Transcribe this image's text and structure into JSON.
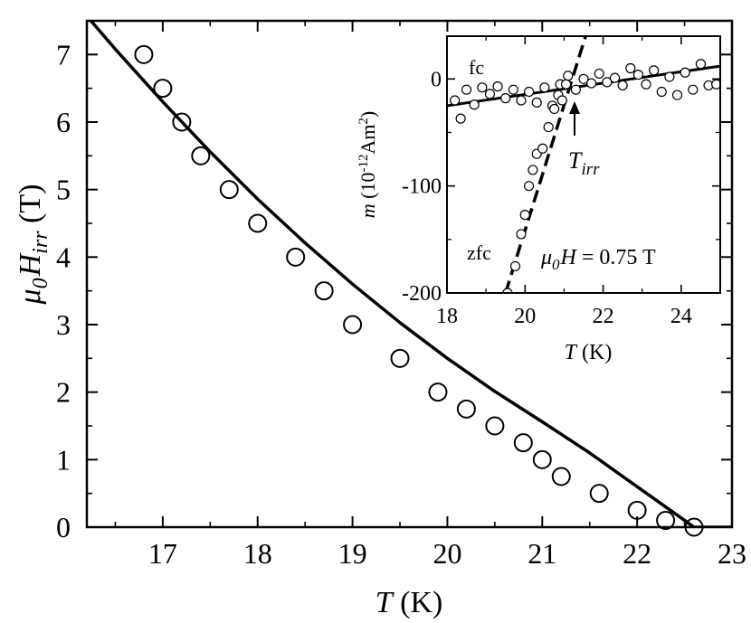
{
  "chart_data": [
    {
      "type": "scatter",
      "xlim": [
        16.2,
        23.0
      ],
      "ylim": [
        0,
        7.5
      ],
      "xticks": [
        "17",
        "18",
        "19",
        "20",
        "21",
        "22",
        "23"
      ],
      "yticks": [
        "0",
        "1",
        "2",
        "3",
        "4",
        "5",
        "6",
        "7"
      ],
      "xlabel": {
        "var": "T",
        "unit": " (K)"
      },
      "ylabel": {
        "var": "μ",
        "sub1": "0",
        "var2": "H",
        "sub2": "irr",
        "unit": " (T)"
      },
      "series": [
        {
          "style": "open-circle",
          "x": [
            16.8,
            17.0,
            17.2,
            17.4,
            17.7,
            18.0,
            18.4,
            18.7,
            19.0,
            19.5,
            19.9,
            20.2,
            20.5,
            20.8,
            21.0,
            21.2,
            21.6,
            22.0,
            22.3,
            22.6
          ],
          "y": [
            7.0,
            6.5,
            6.0,
            5.5,
            5.0,
            4.5,
            4.0,
            3.5,
            3.0,
            2.5,
            2.0,
            1.75,
            1.5,
            1.25,
            1.0,
            0.75,
            0.5,
            0.25,
            0.1,
            0.0
          ]
        },
        {
          "style": "solid-line",
          "x": [
            16.2,
            16.5,
            17.0,
            17.5,
            18.0,
            18.5,
            19.0,
            19.5,
            20.0,
            20.5,
            21.0,
            21.5,
            22.0,
            22.3,
            22.6,
            23.0
          ],
          "y": [
            7.57,
            7.08,
            6.3,
            5.56,
            4.86,
            4.21,
            3.6,
            3.03,
            2.5,
            2.01,
            1.56,
            1.1,
            0.6,
            0.3,
            0.0,
            0.0
          ]
        }
      ]
    },
    {
      "type": "scatter",
      "xlim": [
        18,
        25
      ],
      "ylim": [
        -200,
        40
      ],
      "xticks": [
        "18",
        "20",
        "22",
        "24"
      ],
      "yticks": [
        "0",
        "-100",
        "-200"
      ],
      "ytick_values": [
        0,
        -100,
        -200
      ],
      "xlabel": {
        "var": "T",
        "unit": " (K)"
      },
      "ylabel": {
        "var": "m",
        "pre": " (10",
        "exp": "-12",
        "mid": "Am",
        "exp2": "2",
        "post": ")"
      },
      "annotations": {
        "fc": "fc",
        "zfc": "zfc",
        "tirr_var": "T",
        "tirr_sub": "irr",
        "field_var": "μ",
        "field_sub": "0",
        "field_var2": "H",
        "field_rest": " = 0.75 T"
      },
      "series": [
        {
          "name": "fc",
          "style": "open-circle",
          "x": [
            18.2,
            18.35,
            18.5,
            18.7,
            18.9,
            19.1,
            19.3,
            19.5,
            19.7,
            19.9,
            20.1,
            20.3,
            20.5,
            20.7,
            20.9,
            21.1,
            21.3,
            21.5,
            21.7,
            21.9,
            22.1,
            22.3,
            22.5,
            22.7,
            22.9,
            23.1,
            23.3,
            23.5,
            23.7,
            23.9,
            24.1,
            24.3,
            24.5,
            24.7,
            24.9
          ],
          "y": [
            -20,
            -37,
            -10,
            -24,
            -8,
            -14,
            -7,
            -18,
            -10,
            -20,
            -12,
            -22,
            -8,
            -25,
            -5,
            3,
            -10,
            0,
            -4,
            5,
            -3,
            1,
            -6,
            10,
            4,
            -5,
            8,
            -12,
            2,
            -15,
            6,
            -10,
            14,
            -6,
            -5
          ]
        },
        {
          "name": "zfc",
          "style": "open-circle",
          "x": [
            19.55,
            19.75,
            19.9,
            20.0,
            20.1,
            20.2,
            20.3,
            20.45,
            20.6,
            20.75,
            20.85,
            20.95,
            21.05
          ],
          "y": [
            -200,
            -175,
            -145,
            -127,
            -100,
            -85,
            -70,
            -65,
            -45,
            -28,
            -15,
            -20,
            -5
          ]
        },
        {
          "name": "fc-fit",
          "style": "solid-line",
          "x": [
            18.0,
            25.0
          ],
          "y": [
            -25,
            12
          ]
        },
        {
          "name": "zfc-fit",
          "style": "dashed-line",
          "x": [
            19.5,
            21.55
          ],
          "y": [
            -200,
            40
          ]
        }
      ]
    }
  ]
}
